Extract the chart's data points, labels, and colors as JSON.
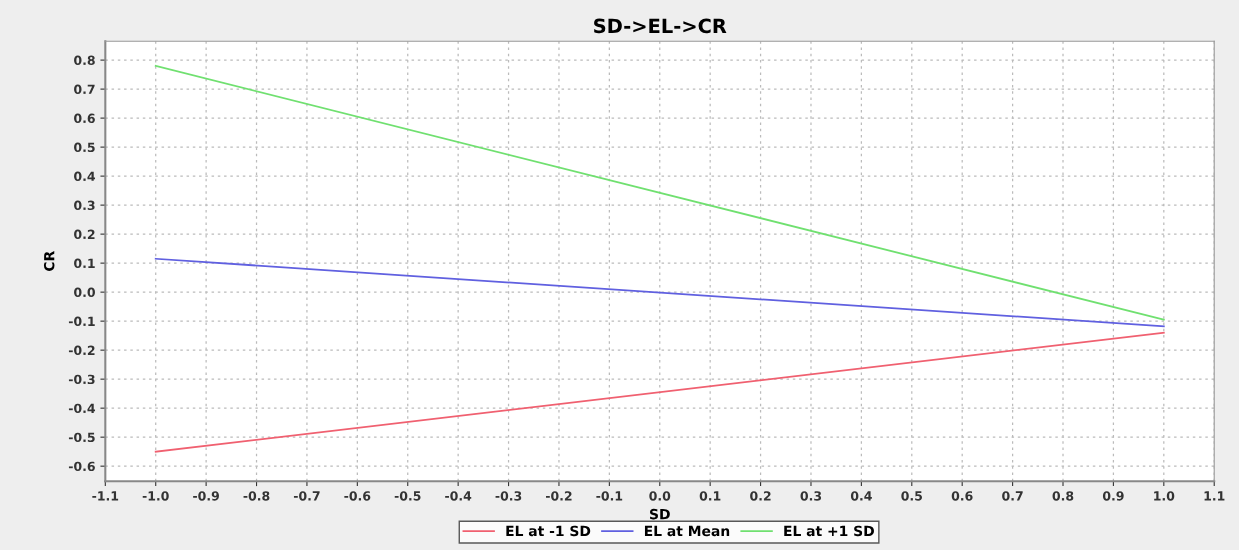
{
  "chart_data": {
    "type": "line",
    "title": "SD->EL->CR",
    "xlabel": "SD",
    "ylabel": "CR",
    "x": [
      -1.0,
      1.0
    ],
    "series": [
      {
        "name": "EL at -1 SD",
        "color": "#f06070",
        "values": [
          -0.55,
          -0.14
        ]
      },
      {
        "name": "EL at Mean",
        "color": "#6060e0",
        "values": [
          0.115,
          -0.118
        ]
      },
      {
        "name": "EL at +1 SD",
        "color": "#70e070",
        "values": [
          0.78,
          -0.095
        ]
      }
    ],
    "xlim": [
      -1.1,
      1.1
    ],
    "xticks": [
      {
        "value": -1.1,
        "label": "-1.1"
      },
      {
        "value": -1.0,
        "label": "-1.0"
      },
      {
        "value": -0.9,
        "label": "-0.9"
      },
      {
        "value": -0.8,
        "label": "-0.8"
      },
      {
        "value": -0.7,
        "label": "-0.7"
      },
      {
        "value": -0.6,
        "label": "-0.6"
      },
      {
        "value": -0.5,
        "label": "-0.5"
      },
      {
        "value": -0.4,
        "label": "-0.4"
      },
      {
        "value": -0.3,
        "label": "-0.3"
      },
      {
        "value": -0.2,
        "label": "-0.2"
      },
      {
        "value": -0.1,
        "label": "-0.1"
      },
      {
        "value": 0.0,
        "label": "0.0"
      },
      {
        "value": 0.1,
        "label": "0.1"
      },
      {
        "value": 0.2,
        "label": "0.2"
      },
      {
        "value": 0.3,
        "label": "0.3"
      },
      {
        "value": 0.4,
        "label": "0.4"
      },
      {
        "value": 0.5,
        "label": "0.5"
      },
      {
        "value": 0.6,
        "label": "0.6"
      },
      {
        "value": 0.7,
        "label": "0.7"
      },
      {
        "value": 0.8,
        "label": "0.8"
      },
      {
        "value": 0.9,
        "label": "0.9"
      },
      {
        "value": 1.0,
        "label": "1.0"
      },
      {
        "value": 1.1,
        "label": "1.1"
      }
    ],
    "ylim": [
      -0.652,
      0.865
    ],
    "yticks": [
      {
        "value": -0.6,
        "label": "-0.6"
      },
      {
        "value": -0.5,
        "label": "-0.5"
      },
      {
        "value": -0.4,
        "label": "-0.4"
      },
      {
        "value": -0.3,
        "label": "-0.3"
      },
      {
        "value": -0.2,
        "label": "-0.2"
      },
      {
        "value": -0.1,
        "label": "-0.1"
      },
      {
        "value": 0.0,
        "label": "0.0"
      },
      {
        "value": 0.1,
        "label": "0.1"
      },
      {
        "value": 0.2,
        "label": "0.2"
      },
      {
        "value": 0.3,
        "label": "0.3"
      },
      {
        "value": 0.4,
        "label": "0.4"
      },
      {
        "value": 0.5,
        "label": "0.5"
      },
      {
        "value": 0.6,
        "label": "0.6"
      },
      {
        "value": 0.7,
        "label": "0.7"
      },
      {
        "value": 0.8,
        "label": "0.8"
      }
    ],
    "grid": true,
    "legend": "bottom",
    "marker": "none",
    "line_style": "solid"
  }
}
